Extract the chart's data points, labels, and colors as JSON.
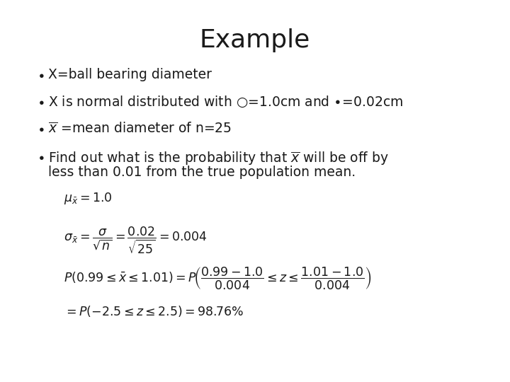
{
  "title": "Example",
  "title_fontsize": 26,
  "background_color": "#ffffff",
  "text_color": "#1a1a1a",
  "bullet_fontsize": 13.5,
  "formula_fontsize": 12.5,
  "fig_width": 7.2,
  "fig_height": 5.4,
  "dpi": 100
}
